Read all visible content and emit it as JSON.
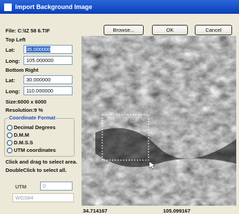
{
  "window": {
    "title": "Import Background Image"
  },
  "file": "File: C:\\IZ 58 6.TIF",
  "buttons": [
    "Browse...",
    "OK",
    "Cancel"
  ],
  "top_left": {
    "heading": "Top Left",
    "lat_label": "Lat:",
    "lat": "35.000000",
    "long_label": "Long:",
    "long": "105.000000"
  },
  "bottom_right": {
    "heading": "Bottom Right",
    "lat_label": "Lat:",
    "lat": "30.000000",
    "long_label": "Long:",
    "long": "110.000000"
  },
  "size": "Size:6000 x 6000",
  "resolution": "Resolution:9 %",
  "coordinate_format": {
    "title": "Coordinate Format",
    "options": [
      "Decimal Degrees",
      "D.M.M",
      "D.M.S.S",
      "UTM coordinates"
    ]
  },
  "instructions": [
    "Click and drag to select area.",
    "DoubleClick to select all."
  ],
  "utm": {
    "label": "UTM",
    "value": "0",
    "datum": "WGS84"
  },
  "cursor_coords": [
    "34.714167",
    "105.099167"
  ]
}
